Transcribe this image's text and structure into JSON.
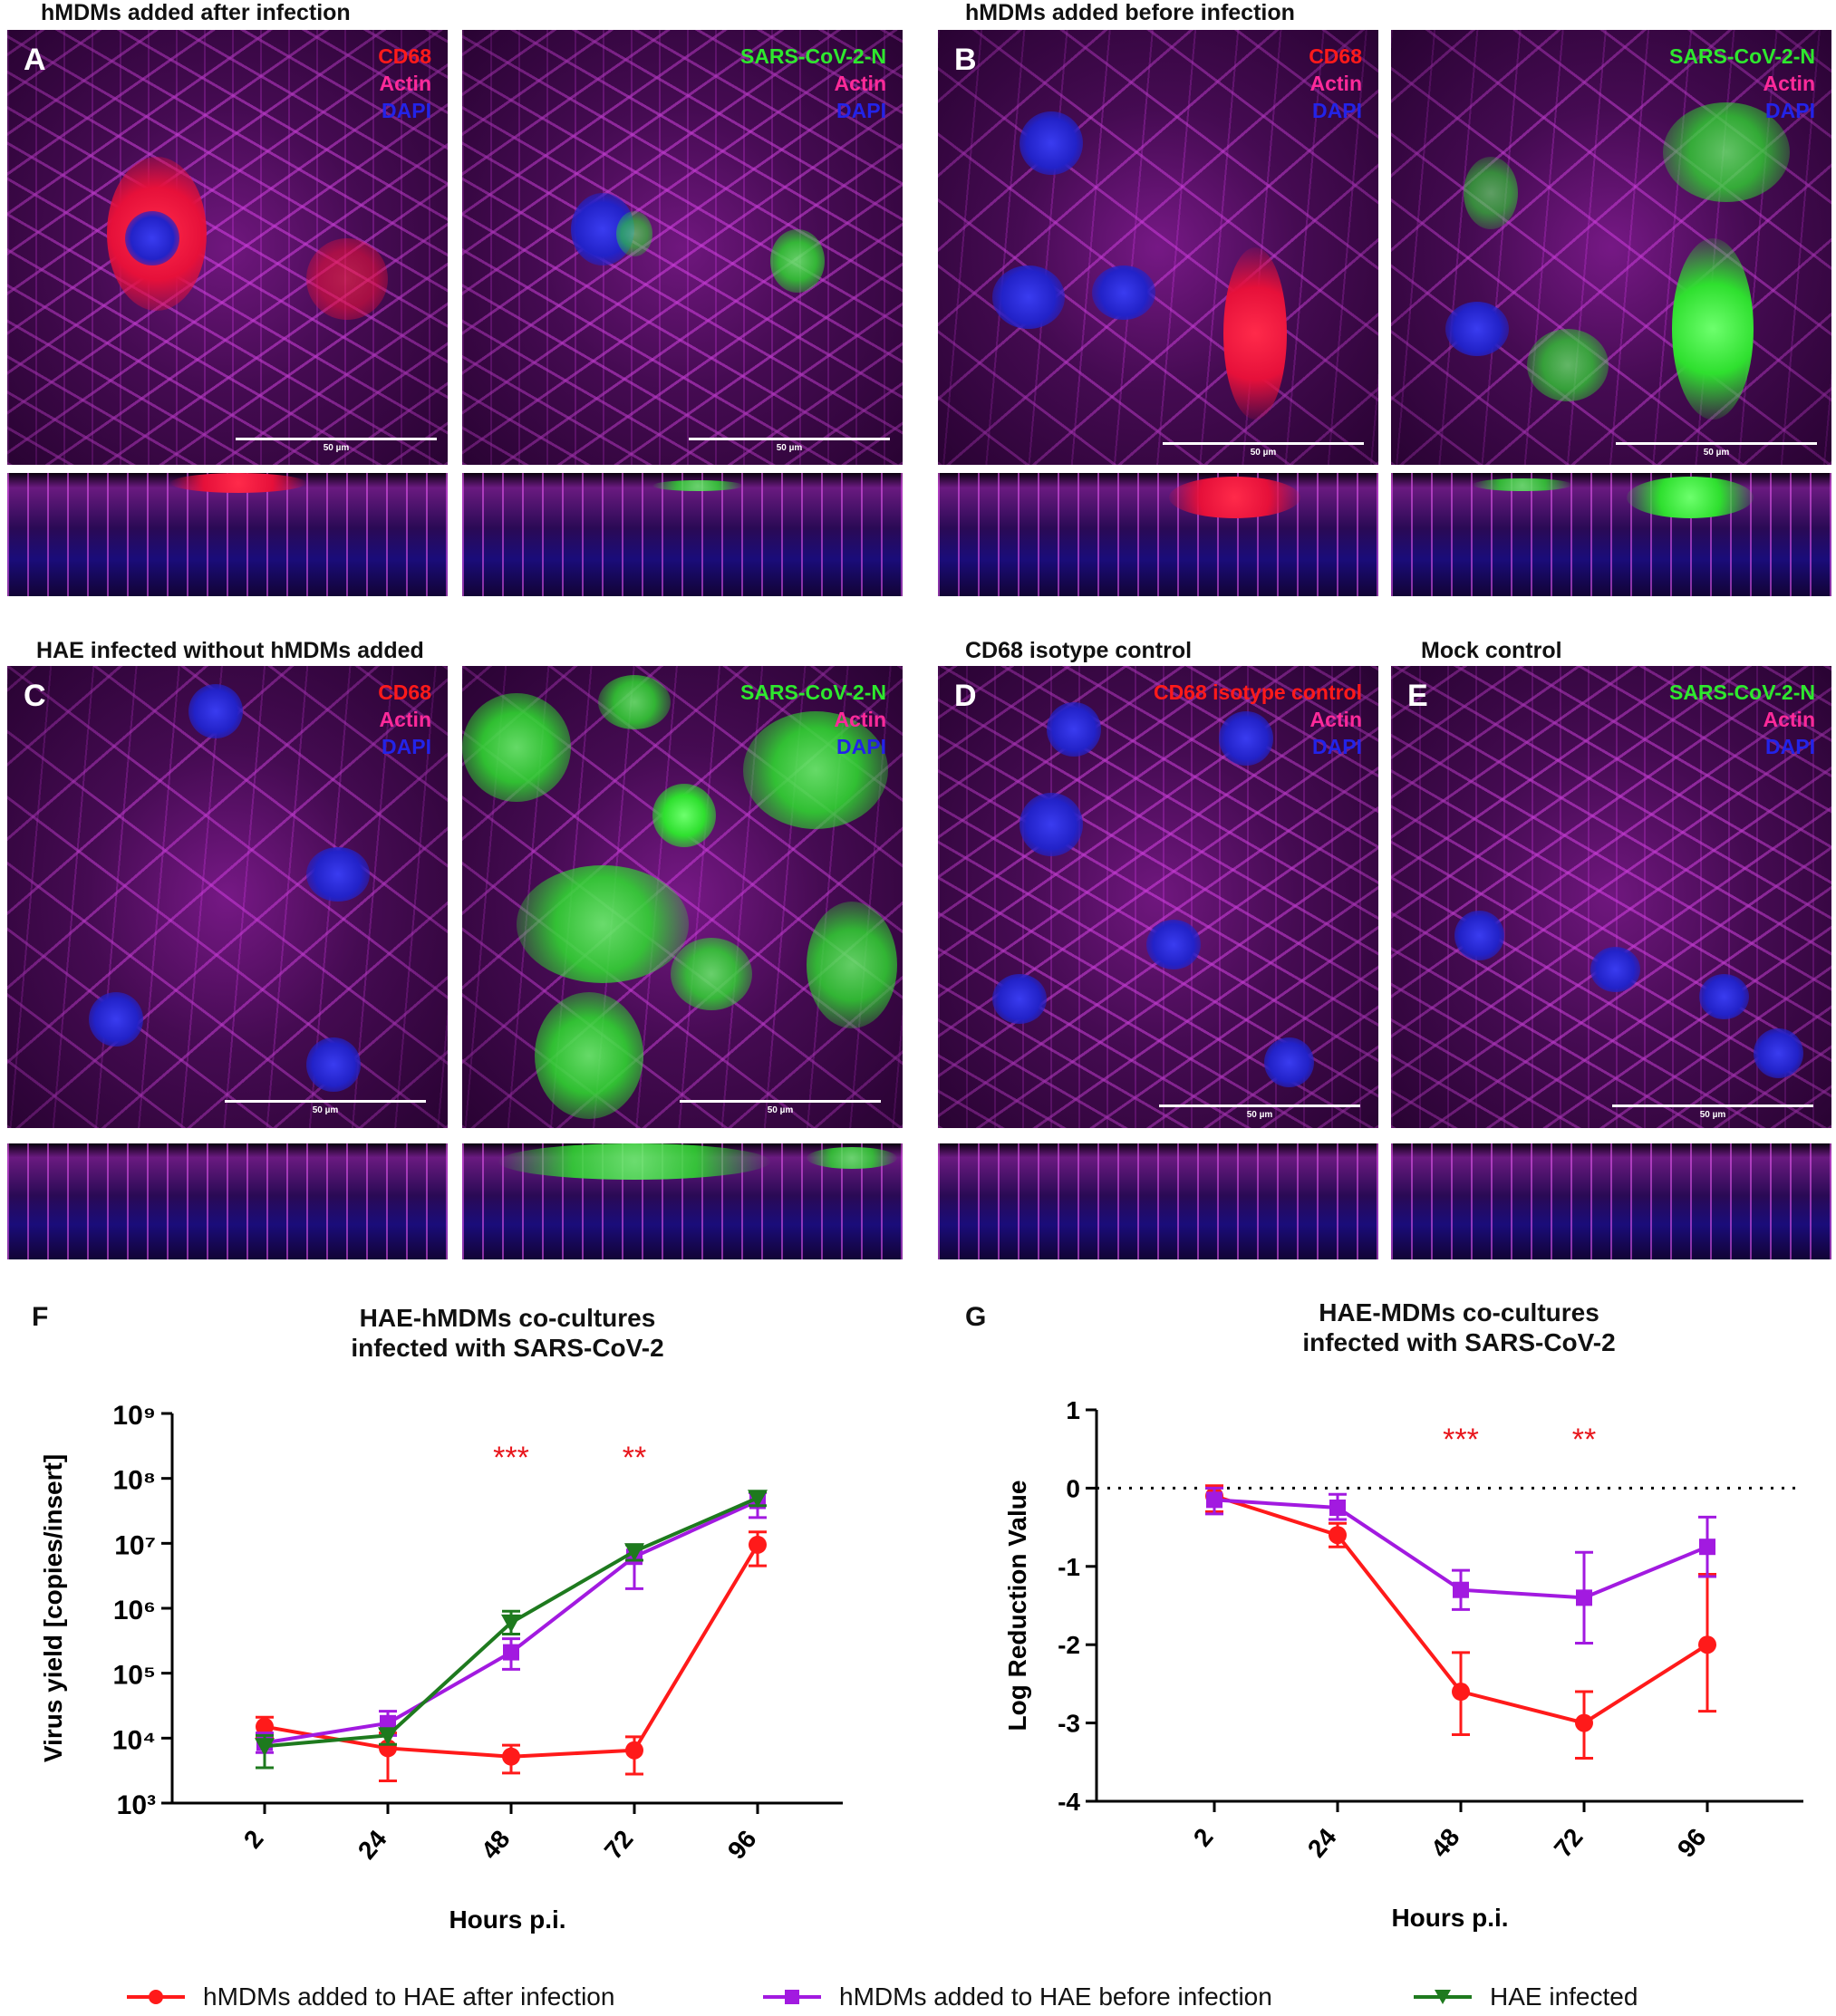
{
  "sections": {
    "top_left": "hMDMs added after infection",
    "top_right": "hMDMs added before infection",
    "mid_left": "HAE infected without hMDMs added",
    "mid_d": "CD68 isotype control",
    "mid_e": "Mock control"
  },
  "panels": {
    "A": "A",
    "B": "B",
    "C": "C",
    "D": "D",
    "E": "E"
  },
  "stains": {
    "cd68": "CD68",
    "actin": "Actin",
    "dapi": "DAPI",
    "n": "SARS-CoV-2-N",
    "isotype": "CD68 isotype control"
  },
  "scalebar": "50 µm",
  "colors": {
    "red_series": "#ff1a1a",
    "purple_series": "#a21ae0",
    "green_series": "#1e7a1e",
    "significance": "#e8151b"
  },
  "chart_F": {
    "letter": "F",
    "title_line1": "HAE-hMDMs co-cultures",
    "title_line2": "infected with SARS-CoV-2"
  },
  "chart_G": {
    "letter": "G",
    "title_line1": "HAE-MDMs co-cultures",
    "title_line2": "infected with SARS-CoV-2"
  },
  "legend": {
    "after": "hMDMs added to HAE after infection",
    "before": "hMDMs added to HAE before infection",
    "infected": "HAE infected"
  },
  "chart_data": [
    {
      "type": "line",
      "panel": "F",
      "title": "HAE-hMDMs co-cultures infected with SARS-CoV-2",
      "xlabel": "Hours p.i.",
      "ylabel": "Virus yield [copies/insert]",
      "yscale": "log",
      "ylim": [
        1000,
        1000000000
      ],
      "yticks": [
        "10³",
        "10⁴",
        "10⁵",
        "10⁶",
        "10⁷",
        "10⁸",
        "10⁹"
      ],
      "categories": [
        "2",
        "24",
        "48",
        "72",
        "96"
      ],
      "significance": [
        {
          "x": "48",
          "label": "***"
        },
        {
          "x": "72",
          "label": "**"
        }
      ],
      "series": [
        {
          "name": "hMDMs added to HAE after infection",
          "color": "#ff1a1a",
          "marker": "circle",
          "values": [
            15000,
            7000,
            5200,
            6500,
            9500000
          ],
          "err_low": [
            10000,
            2200,
            2900,
            2800,
            4500000
          ],
          "err_high": [
            21000,
            12000,
            7800,
            10500,
            15000000
          ]
        },
        {
          "name": "hMDMs added to HAE before infection",
          "color": "#a21ae0",
          "marker": "square",
          "values": [
            8500,
            17000,
            210000,
            6200000,
            45000000
          ],
          "err_low": [
            6000,
            11000,
            115000,
            2000000,
            25000000
          ],
          "err_high": [
            12000,
            26000,
            340000,
            9500000,
            60000000
          ]
        },
        {
          "name": "HAE infected",
          "color": "#1e7a1e",
          "marker": "triangle-down",
          "values": [
            7500,
            11000,
            600000,
            7500000,
            50000000
          ],
          "err_low": [
            3500,
            8000,
            400000,
            5500000,
            38000000
          ],
          "err_high": [
            11000,
            14000,
            900000,
            9500000,
            62000000
          ]
        }
      ]
    },
    {
      "type": "line",
      "panel": "G",
      "title": "HAE-MDMs co-cultures infected with SARS-CoV-2",
      "xlabel": "Hours p.i.",
      "ylabel": "Log Reduction Value",
      "ylim": [
        -4,
        1
      ],
      "yticks": [
        "1",
        "0",
        "-1",
        "-2",
        "-3",
        "-4"
      ],
      "categories": [
        "2",
        "24",
        "48",
        "72",
        "96"
      ],
      "reference_line": 0,
      "significance": [
        {
          "x": "48",
          "label": "***"
        },
        {
          "x": "72",
          "label": "**"
        }
      ],
      "series": [
        {
          "name": "hMDMs added to HAE after infection",
          "color": "#ff1a1a",
          "marker": "circle",
          "values": [
            -0.1,
            -0.6,
            -2.6,
            -3.0,
            -2.0
          ],
          "err_low": [
            -0.3,
            -0.75,
            -3.15,
            -3.45,
            -2.85
          ],
          "err_high": [
            0.03,
            -0.45,
            -2.1,
            -2.6,
            -1.1
          ]
        },
        {
          "name": "hMDMs added to HAE before infection",
          "color": "#a21ae0",
          "marker": "square",
          "values": [
            -0.15,
            -0.25,
            -1.3,
            -1.4,
            -0.75
          ],
          "err_low": [
            -0.33,
            -0.4,
            -1.55,
            -1.98,
            -1.13
          ],
          "err_high": [
            0.0,
            -0.08,
            -1.05,
            -0.82,
            -0.37
          ]
        }
      ]
    }
  ]
}
